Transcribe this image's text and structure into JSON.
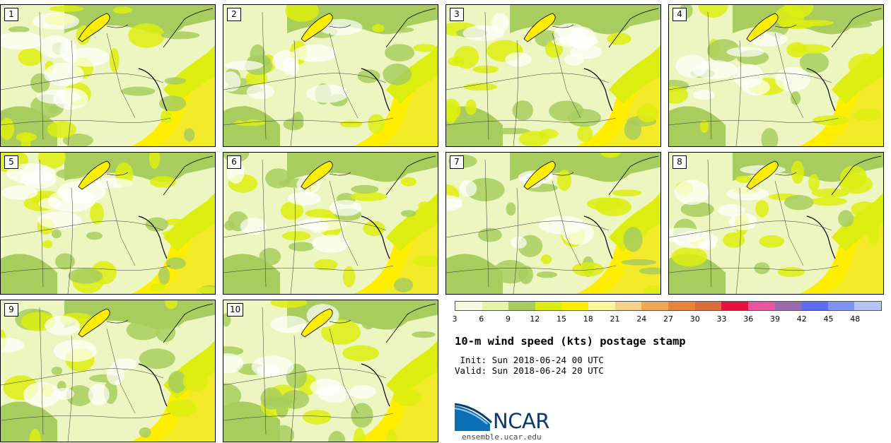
{
  "panels": [
    {
      "label": "1"
    },
    {
      "label": "2"
    },
    {
      "label": "3"
    },
    {
      "label": "4"
    },
    {
      "label": "5"
    },
    {
      "label": "6"
    },
    {
      "label": "7"
    },
    {
      "label": "8"
    },
    {
      "label": "9"
    },
    {
      "label": "10"
    }
  ],
  "legend": {
    "colors": [
      "#f7fbe2",
      "#e5f5a8",
      "#a8cc5e",
      "#dcee10",
      "#ffee00",
      "#fff4a0",
      "#f5d28a",
      "#f0a855",
      "#e8853a",
      "#d86f3a",
      "#e8103e",
      "#e8559e",
      "#9b6aae",
      "#5d6ef5",
      "#7f93f5",
      "#b5c5f3"
    ],
    "tick_labels": [
      "3",
      "6",
      "9",
      "12",
      "15",
      "18",
      "21",
      "24",
      "27",
      "30",
      "33",
      "36",
      "39",
      "42",
      "45",
      "48"
    ]
  },
  "title": "10-m wind speed (kts) postage stamp",
  "init": " Init: Sun 2018-06-24 00 UTC",
  "valid": "Valid: Sun 2018-06-24 20 UTC",
  "logo_text": "NCAR",
  "site": "ensemble.ucar.edu"
}
